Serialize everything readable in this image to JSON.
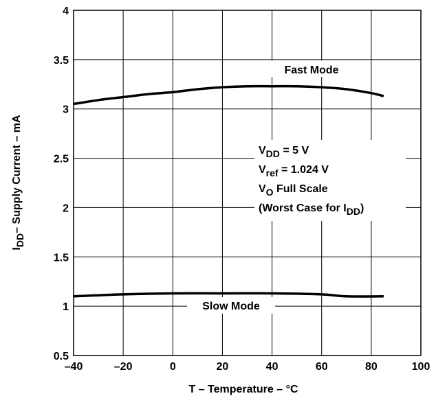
{
  "chart_data": {
    "type": "line",
    "title": "",
    "xlabel": "T – Temperature – °C",
    "ylabel": {
      "main": "I",
      "sub": "DD",
      "rest": "– Supply Current – mA"
    },
    "xlim": [
      -40,
      100
    ],
    "ylim": [
      0.5,
      4
    ],
    "x_ticks": [
      -40,
      -20,
      0,
      20,
      40,
      60,
      80,
      100
    ],
    "x_tick_labels": [
      "–40",
      "–20",
      "0",
      "20",
      "40",
      "60",
      "80",
      "100"
    ],
    "y_ticks": [
      0.5,
      1,
      1.5,
      2,
      2.5,
      3,
      3.5,
      4
    ],
    "y_tick_labels": [
      "0.5",
      "1",
      "1.5",
      "2",
      "2.5",
      "3",
      "3.5",
      "4"
    ],
    "grid": true,
    "series": [
      {
        "name": "Fast Mode",
        "x": [
          -40,
          -30,
          -20,
          -10,
          0,
          10,
          20,
          30,
          40,
          50,
          60,
          70,
          80,
          85
        ],
        "y": [
          3.05,
          3.09,
          3.12,
          3.15,
          3.17,
          3.2,
          3.22,
          3.23,
          3.23,
          3.23,
          3.22,
          3.2,
          3.16,
          3.13
        ]
      },
      {
        "name": "Slow Mode",
        "x": [
          -40,
          -20,
          0,
          20,
          40,
          60,
          70,
          85
        ],
        "y": [
          1.1,
          1.12,
          1.13,
          1.13,
          1.13,
          1.12,
          1.1,
          1.1
        ]
      }
    ],
    "annotations": [
      {
        "id": "vdd",
        "main": "V",
        "sub": "DD",
        "rest": " = 5 V"
      },
      {
        "id": "vref",
        "main": "V",
        "sub": "ref",
        "rest": " = 1.024 V"
      },
      {
        "id": "vo",
        "main": "V",
        "sub": "O",
        "rest": " Full Scale"
      },
      {
        "id": "worst",
        "main": "(Worst Case for I",
        "sub": "DD",
        "rest": ")"
      }
    ],
    "colors": {
      "line": "#000000",
      "grid": "#000000",
      "background": "#ffffff"
    }
  }
}
